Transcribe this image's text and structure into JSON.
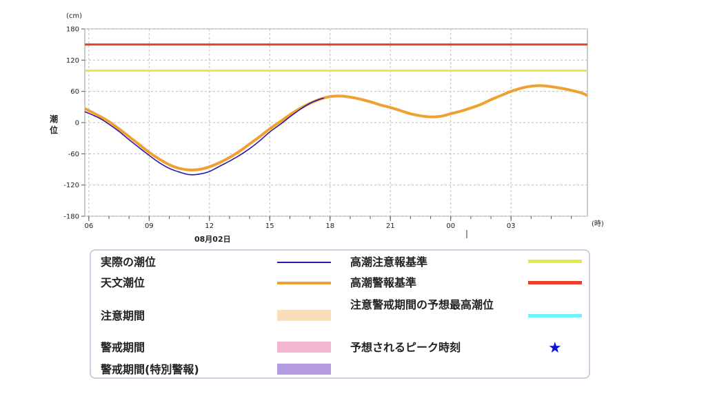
{
  "chart_data": {
    "type": "line",
    "unit_label": "(cm)",
    "ylabel": "潮位",
    "xunit_label": "(時)",
    "date_label": "08月02日",
    "ylim": [
      -180,
      180
    ],
    "yticks": [
      180,
      120,
      60,
      0,
      -60,
      -120,
      -180
    ],
    "x_start_hour": 6,
    "x_end_hour": 30.8,
    "xticks": [
      {
        "hour": 6,
        "label": "06"
      },
      {
        "hour": 9,
        "label": "09"
      },
      {
        "hour": 12,
        "label": "12"
      },
      {
        "hour": 15,
        "label": "15"
      },
      {
        "hour": 18,
        "label": "18"
      },
      {
        "hour": 21,
        "label": "21"
      },
      {
        "hour": 24,
        "label": "00"
      },
      {
        "hour": 27,
        "label": "03"
      }
    ],
    "grid": true,
    "series": [
      {
        "name": "天文潮位",
        "color": "#f0a030",
        "x": [
          5.8,
          6.5,
          7.0,
          7.5,
          8.0,
          8.5,
          9.0,
          9.5,
          10.0,
          10.5,
          11.0,
          11.5,
          12.0,
          12.5,
          13.0,
          13.5,
          14.0,
          14.5,
          15.0,
          15.5,
          16.0,
          16.5,
          17.0,
          17.5,
          18.0,
          18.5,
          19.0,
          19.5,
          20.0,
          20.5,
          21.0,
          21.5,
          22.0,
          22.5,
          23.0,
          23.5,
          24.0,
          24.5,
          25.0,
          25.5,
          26.0,
          26.5,
          27.0,
          27.5,
          28.0,
          28.5,
          29.0,
          29.5,
          30.0,
          30.5,
          30.8
        ],
        "values": [
          27,
          13,
          2,
          -12,
          -27,
          -42,
          -57,
          -70,
          -81,
          -88,
          -91,
          -90,
          -85,
          -77,
          -67,
          -55,
          -41,
          -27,
          -12,
          1,
          15,
          27,
          37,
          45,
          50,
          51,
          49,
          45,
          40,
          34,
          29,
          23,
          17,
          13,
          11,
          12,
          17,
          22,
          28,
          35,
          44,
          52,
          60,
          66,
          70,
          71,
          69,
          66,
          62,
          57,
          52
        ]
      },
      {
        "name": "実際の潮位",
        "color": "#2a18a8",
        "x": [
          5.8,
          6.5,
          7.0,
          7.5,
          8.0,
          8.5,
          9.0,
          9.5,
          10.0,
          10.5,
          11.0,
          11.5,
          12.0,
          12.5,
          13.0,
          13.5,
          14.0,
          14.5,
          15.0,
          15.5,
          16.0,
          16.5,
          17.0,
          17.5,
          17.7
        ],
        "values": [
          21,
          9,
          -3,
          -17,
          -33,
          -48,
          -63,
          -77,
          -88,
          -95,
          -100,
          -99,
          -94,
          -84,
          -74,
          -63,
          -50,
          -35,
          -18,
          -4,
          11,
          25,
          37,
          45,
          47
        ]
      }
    ],
    "reference_lines": [
      {
        "name": "高潮注意報基準",
        "value": 100,
        "color": "#e8e840"
      },
      {
        "name": "高潮警報基準",
        "value": 150,
        "color": "#e8402a"
      }
    ]
  },
  "legend": {
    "actual": {
      "label": "実際の潮位",
      "color": "#2a18a8"
    },
    "astro": {
      "label": "天文潮位",
      "color": "#f0a030"
    },
    "caution_period": {
      "label": "注意期間",
      "color": "#f8dfb8"
    },
    "warning_period": {
      "label": "警戒期間",
      "color": "#f3b6cf"
    },
    "warning_special": {
      "label": "警戒期間(特別警報)",
      "color": "#b49ae0"
    },
    "caution_std": {
      "label": "高潮注意報基準",
      "color": "#e8e840"
    },
    "warning_std": {
      "label": "高潮警報基準",
      "color": "#e8402a"
    },
    "max_forecast": {
      "label": "注意警戒期間の予想最高潮位",
      "color": "#6ff0ff"
    },
    "peak_time": {
      "label": "予想されるピーク時刻",
      "symbol": "★",
      "color": "#0a14d8"
    }
  }
}
